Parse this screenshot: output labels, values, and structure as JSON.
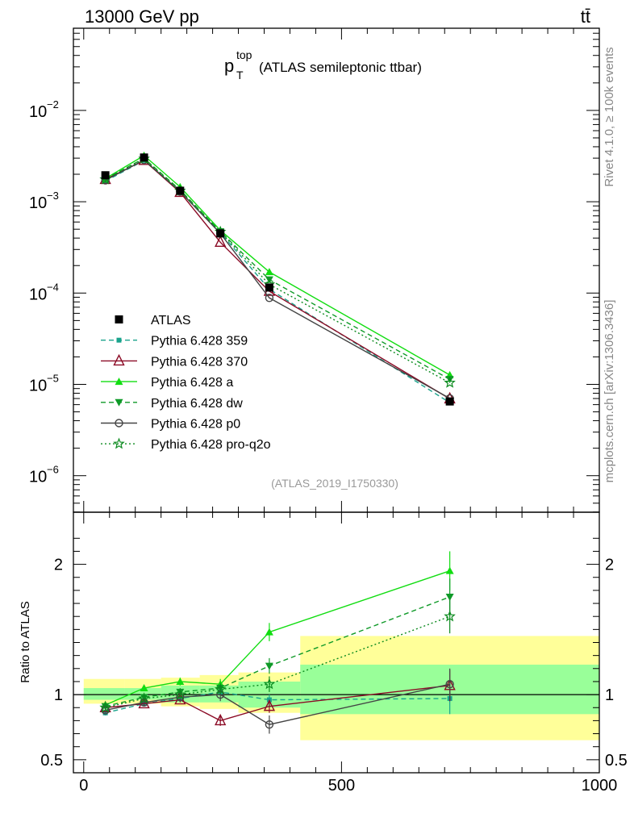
{
  "header": {
    "left": "13000 GeV pp",
    "right": "tt̄"
  },
  "side_labels": {
    "top": "Rivet 4.1.0, ≥ 100k events",
    "bottom": "mcplots.cern.ch [arXiv:1306.3436]"
  },
  "chart_data": {
    "type": "line",
    "title": {
      "main": "p",
      "sup": "top",
      "sub": "T",
      "rest": "(ATLAS semileptonic ttbar)"
    },
    "analysis_id": "(ATLAS_2019_I1750330)",
    "xlim": [
      -20,
      1000
    ],
    "ylim_log10": [
      -6.4,
      -1.1
    ],
    "ratio_ylim": [
      0.4,
      2.4
    ],
    "ylabel_ratio": "Ratio to ATLAS",
    "x_ticks": [
      {
        "value": 0,
        "label": "0"
      },
      {
        "value": 500,
        "label": "500"
      },
      {
        "value": 1000,
        "label": "1000"
      }
    ],
    "y_ticks": [
      {
        "exp": -6,
        "label": "10",
        "sup": "−6"
      },
      {
        "exp": -5,
        "label": "10",
        "sup": "−5"
      },
      {
        "exp": -4,
        "label": "10",
        "sup": "−4"
      },
      {
        "exp": -3,
        "label": "10",
        "sup": "−3"
      },
      {
        "exp": -2,
        "label": "10",
        "sup": "−2"
      }
    ],
    "ratio_ticks": [
      {
        "value": 0.5,
        "label": "0.5"
      },
      {
        "value": 1,
        "label": "1"
      },
      {
        "value": 2,
        "label": "2"
      }
    ],
    "bins": [
      {
        "lo": 0,
        "hi": 80,
        "x": 42,
        "y": 0.00195,
        "band_inner": [
          0.96,
          1.05
        ],
        "band_outer": [
          0.93,
          1.12
        ]
      },
      {
        "lo": 80,
        "hi": 150,
        "x": 117,
        "y": 0.00305,
        "band_inner": [
          0.96,
          1.05
        ],
        "band_outer": [
          0.93,
          1.12
        ]
      },
      {
        "lo": 150,
        "hi": 225,
        "x": 187,
        "y": 0.00132,
        "band_inner": [
          0.94,
          1.07
        ],
        "band_outer": [
          0.91,
          1.13
        ]
      },
      {
        "lo": 225,
        "hi": 300,
        "x": 265,
        "y": 0.00045,
        "band_inner": [
          0.94,
          1.07
        ],
        "band_outer": [
          0.89,
          1.15
        ]
      },
      {
        "lo": 300,
        "hi": 420,
        "x": 360,
        "y": 0.000115,
        "band_inner": [
          0.9,
          1.1
        ],
        "band_outer": [
          0.86,
          1.17
        ]
      },
      {
        "lo": 420,
        "hi": 1000,
        "x": 710,
        "y": 6.5e-06,
        "band_inner": [
          0.85,
          1.23
        ],
        "band_outer": [
          0.65,
          1.45
        ]
      }
    ],
    "data_series": {
      "name": "ATLAS",
      "marker": "square",
      "color": "#000000"
    },
    "series": [
      {
        "name": "Pythia 6.428 359",
        "color": "#1aa38c",
        "dash": "6,4",
        "marker": "smallsquare",
        "ratio": [
          0.86,
          0.93,
          0.97,
          1.02,
          0.96,
          0.97
        ],
        "ratio_err": [
          0.02,
          0.02,
          0.02,
          0.03,
          0.04,
          0.12
        ]
      },
      {
        "name": "Pythia 6.428 370",
        "color": "#8b0a25",
        "dash": "",
        "marker": "opentriangle",
        "ratio": [
          0.9,
          0.93,
          0.96,
          0.8,
          0.91,
          1.07
        ],
        "ratio_err": [
          0.02,
          0.02,
          0.02,
          0.04,
          0.05,
          0.12
        ]
      },
      {
        "name": "Pythia 6.428 a",
        "color": "#11dd11",
        "dash": "",
        "marker": "triangle",
        "ratio": [
          0.92,
          1.05,
          1.1,
          1.08,
          1.48,
          1.95
        ],
        "ratio_err": [
          0.02,
          0.02,
          0.03,
          0.04,
          0.07,
          0.15
        ]
      },
      {
        "name": "Pythia 6.428 dw",
        "color": "#0f9a28",
        "dash": "6,4",
        "marker": "triangledown",
        "ratio": [
          0.91,
          0.98,
          1.02,
          1.05,
          1.22,
          1.75
        ],
        "ratio_err": [
          0.02,
          0.02,
          0.03,
          0.04,
          0.06,
          0.14
        ]
      },
      {
        "name": "Pythia 6.428 p0",
        "color": "#444444",
        "dash": "",
        "marker": "opencircle",
        "ratio": [
          0.88,
          0.94,
          0.98,
          1.0,
          0.77,
          1.08
        ],
        "ratio_err": [
          0.02,
          0.02,
          0.03,
          0.05,
          0.07,
          0.12
        ]
      },
      {
        "name": "Pythia 6.428 pro-q2o",
        "color": "#0b8a1e",
        "dash": "2,3",
        "marker": "star",
        "ratio": [
          0.9,
          0.97,
          1.0,
          1.04,
          1.08,
          1.6
        ],
        "ratio_err": [
          0.02,
          0.02,
          0.03,
          0.04,
          0.06,
          0.13
        ]
      }
    ]
  }
}
